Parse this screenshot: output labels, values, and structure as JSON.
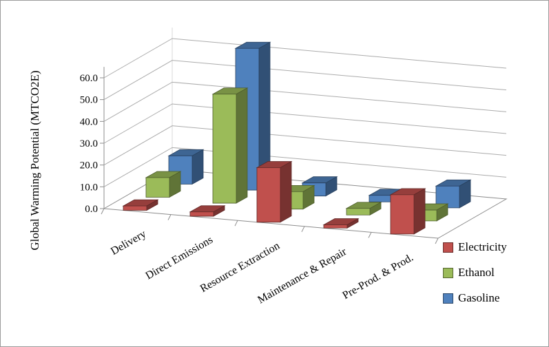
{
  "chart_data": {
    "type": "bar",
    "projection": "3d",
    "ylabel": "Global Warming Potential (MTCO2E)",
    "categories": [
      "Delivery",
      "Direct Emissions",
      "Resource Extraction",
      "Maintenance & Repair",
      "Pre-Prod. & Prod."
    ],
    "series": [
      {
        "name": "Electricity",
        "color": "#C0504D",
        "values": [
          2,
          2,
          25,
          1.5,
          18
        ]
      },
      {
        "name": "Ethanol",
        "color": "#9BBB59",
        "values": [
          9,
          50,
          8,
          3,
          5
        ]
      },
      {
        "name": "Gasoline",
        "color": "#4F81BD",
        "values": [
          13,
          65,
          6,
          3,
          10
        ]
      }
    ],
    "ylim": [
      0,
      60
    ],
    "yticks": [
      0,
      10,
      20,
      30,
      40,
      50,
      60
    ],
    "ytick_labels": [
      "0.0",
      "10.0",
      "20.0",
      "30.0",
      "40.0",
      "50.0",
      "60.0"
    ],
    "legend_position": "bottom-right",
    "grid": true
  }
}
